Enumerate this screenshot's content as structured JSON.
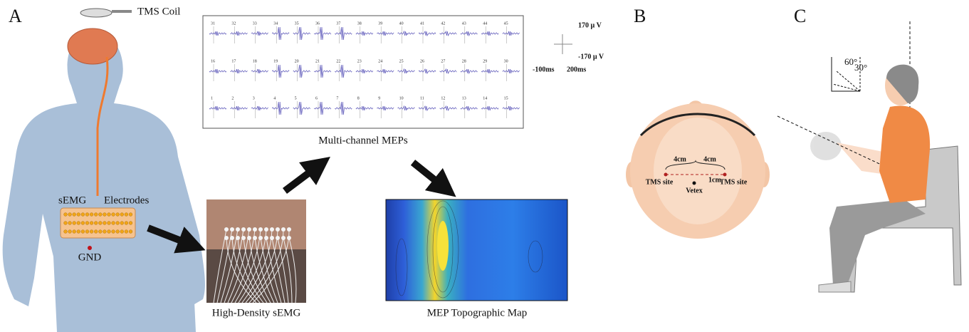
{
  "panel_a": {
    "label": "A",
    "coil": "TMS Coil",
    "semg": "sEMG",
    "electrodes": "Electrodes",
    "gnd": "GND",
    "photo_caption": "High-Density sEMG",
    "meps": {
      "caption": "Multi-channel MEPs",
      "channels": [
        [
          31,
          32,
          33,
          34,
          35,
          36,
          37,
          38,
          39,
          40,
          41,
          42,
          43,
          44,
          45
        ],
        [
          16,
          17,
          18,
          19,
          20,
          21,
          22,
          23,
          24,
          25,
          26,
          27,
          28,
          29,
          30
        ],
        [
          1,
          2,
          3,
          4,
          5,
          6,
          7,
          8,
          9,
          10,
          11,
          12,
          13,
          14,
          15
        ]
      ],
      "scale": {
        "top": "170 µ V",
        "bottom": "-170 µ V",
        "left": "-100ms",
        "right": "200ms"
      }
    },
    "map_caption": "MEP Topographic Map"
  },
  "panel_b": {
    "label": "B",
    "dist_left": "4cm",
    "dist_right": "4cm",
    "site_left": "TMS site",
    "site_right": "TMS site",
    "offset": "1cm",
    "vertex": "Vetex"
  },
  "panel_c": {
    "label": "C",
    "angle_outer": "60°",
    "angle_inner": "30°"
  }
}
